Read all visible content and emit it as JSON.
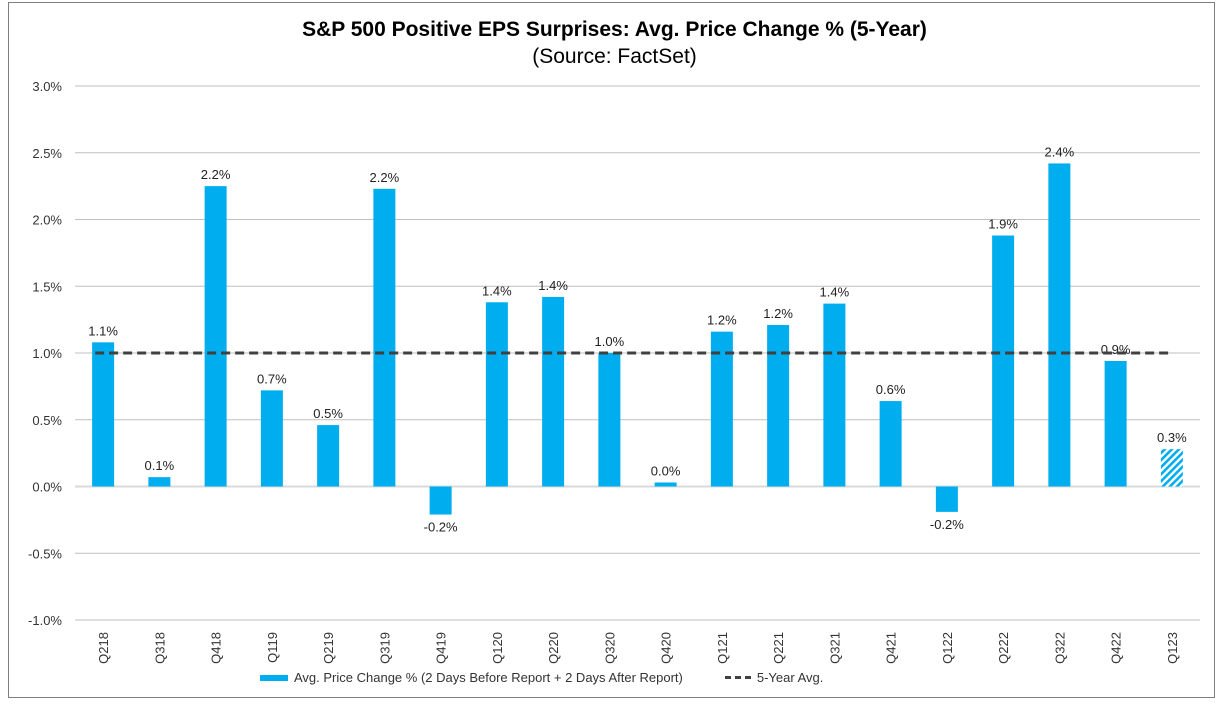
{
  "chart_data": {
    "type": "bar",
    "title": "S&P 500 Positive EPS Surprises: Avg. Price Change % (5-Year)",
    "subtitle": "(Source: FactSet)",
    "categories": [
      "Q218",
      "Q318",
      "Q418",
      "Q119",
      "Q219",
      "Q319",
      "Q419",
      "Q120",
      "Q220",
      "Q320",
      "Q420",
      "Q121",
      "Q221",
      "Q321",
      "Q421",
      "Q122",
      "Q222",
      "Q322",
      "Q422",
      "Q123"
    ],
    "series": [
      {
        "name": "Avg. Price Change % (2 Days Before Report + 2 Days After Report)",
        "values": [
          1.08,
          0.07,
          2.25,
          0.72,
          0.46,
          2.23,
          -0.21,
          1.38,
          1.42,
          1.0,
          0.03,
          1.16,
          1.21,
          1.37,
          0.64,
          -0.19,
          1.88,
          2.42,
          0.94,
          0.28
        ],
        "labels": [
          "1.1%",
          "0.1%",
          "2.2%",
          "0.7%",
          "0.5%",
          "2.2%",
          "-0.2%",
          "1.4%",
          "1.4%",
          "1.0%",
          "0.0%",
          "1.2%",
          "1.2%",
          "1.4%",
          "0.6%",
          "-0.2%",
          "1.9%",
          "2.4%",
          "0.9%",
          "0.3%"
        ],
        "color": "#00aeef",
        "hatched_last": true
      }
    ],
    "reference_line": {
      "name": "5-Year Avg.",
      "value": 1.0,
      "style": "dashed",
      "color": "#404040"
    },
    "ylim": [
      -1.0,
      3.0
    ],
    "yticks": [
      -1.0,
      -0.5,
      0.0,
      0.5,
      1.0,
      1.5,
      2.0,
      2.5,
      3.0
    ],
    "ytick_labels": [
      "-1.0%",
      "-0.5%",
      "0.0%",
      "0.5%",
      "1.0%",
      "1.5%",
      "2.0%",
      "2.5%",
      "3.0%"
    ],
    "grid": true,
    "legend_position": "bottom"
  }
}
